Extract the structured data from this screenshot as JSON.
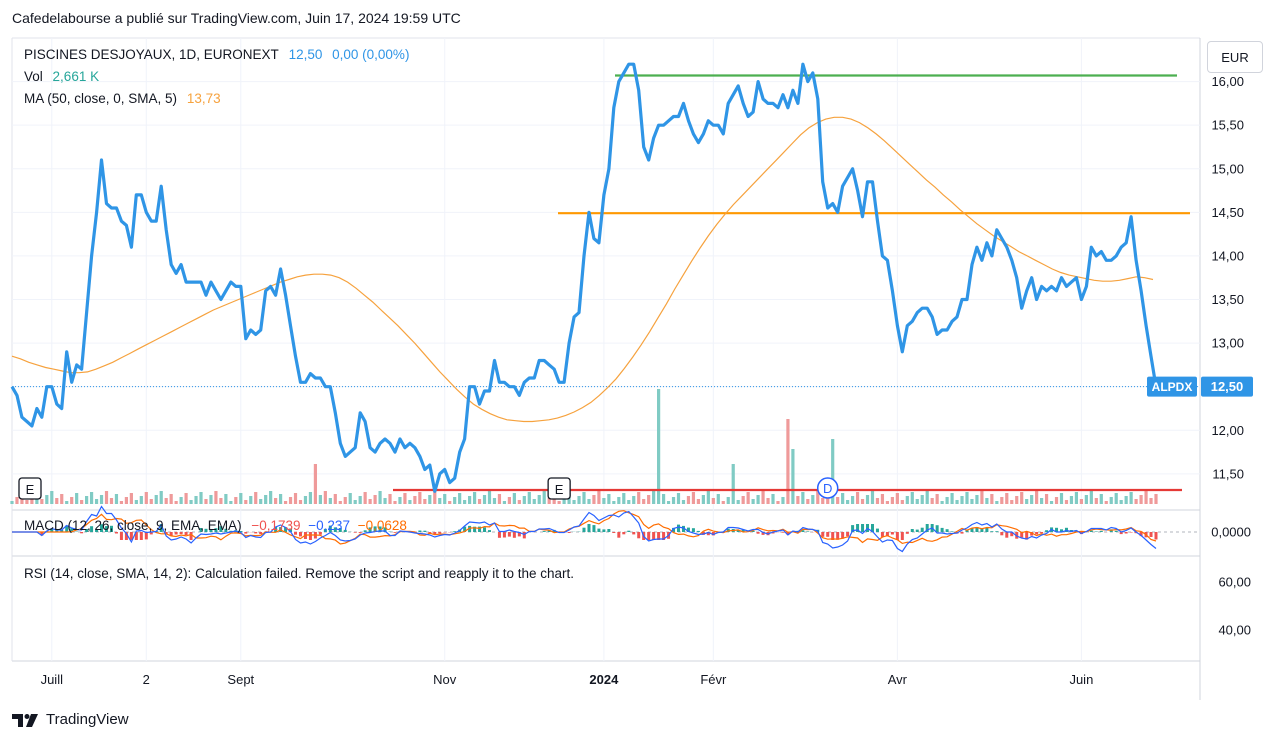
{
  "header": {
    "publisher": "Cafedelabourse a publié sur TradingView.com, Juin 17, 2024 19:59 UTC"
  },
  "legend": {
    "symbol": "PISCINES DESJOYAUX, 1D, EURONEXT",
    "last": "12,50",
    "change": "0,00 (0,00%)",
    "vol_label": "Vol",
    "vol_value": "2,661 K",
    "ma_label": "MA (50, close, 0, SMA, 5)",
    "ma_value": "13,73",
    "macd_label": "MACD (12, 26, close, 9, EMA, EMA)",
    "macd_hist": "−0,1739",
    "macd_macd": "−0,237",
    "macd_signal": "−0,0628",
    "rsi_text": "RSI (14, close, SMA, 14, 2): Calculation failed. Remove the script and reapply it to the chart."
  },
  "currency": "EUR",
  "price_tag": {
    "symbol": "ALPDX",
    "value": "12,50"
  },
  "brand": "TradingView",
  "colors": {
    "price": "#2f95e6",
    "ma": "#f6a23e",
    "green_line": "#4caf50",
    "orange_line": "#ff9800",
    "red_line": "#e53935",
    "macd": "#2962ff",
    "signal": "#ff6d00",
    "vol_up": "#80cbc4",
    "vol_down": "#ef9a9a"
  },
  "markers": [
    {
      "label": "E",
      "date_index": 0
    },
    {
      "label": "E",
      "date_index": 110
    },
    {
      "label": "D",
      "date_index": 164
    }
  ],
  "chart_data": {
    "type": "line",
    "title": "PISCINES DESJOYAUX, 1D, EURONEXT",
    "ylim": [
      11.2,
      16.5
    ],
    "y_ticks": [
      "16,00",
      "15,50",
      "15,00",
      "14,50",
      "14,00",
      "13,50",
      "13,00",
      "12,50",
      "12,00",
      "11,50"
    ],
    "x_ticks": [
      {
        "label": "Juill",
        "idx": 8
      },
      {
        "label": "2",
        "idx": 27
      },
      {
        "label": "Sept",
        "idx": 46
      },
      {
        "label": "Nov",
        "idx": 87
      },
      {
        "label": "2024",
        "idx": 119
      },
      {
        "label": "Févr",
        "idx": 141
      },
      {
        "label": "Avr",
        "idx": 178
      },
      {
        "label": "Juin",
        "idx": 215
      }
    ],
    "series": [
      {
        "name": "PISCINES DESJOYAUX",
        "values": [
          12.5,
          12.4,
          12.15,
          12.1,
          12.05,
          12.25,
          12.15,
          12.5,
          12.5,
          12.3,
          12.25,
          12.9,
          12.55,
          12.75,
          12.7,
          13.35,
          14.0,
          14.5,
          15.1,
          14.6,
          14.55,
          14.55,
          14.4,
          14.35,
          14.1,
          14.7,
          14.7,
          14.5,
          14.4,
          14.4,
          14.8,
          14.3,
          13.9,
          13.8,
          13.9,
          13.7,
          13.7,
          13.7,
          13.7,
          13.55,
          13.7,
          13.6,
          13.5,
          13.6,
          13.7,
          13.65,
          13.65,
          13.05,
          13.15,
          13.1,
          13.15,
          13.6,
          13.65,
          13.55,
          13.85,
          13.55,
          13.2,
          12.85,
          12.55,
          12.55,
          12.65,
          12.6,
          12.6,
          12.5,
          12.5,
          12.2,
          11.85,
          11.7,
          11.75,
          11.8,
          12.2,
          12.1,
          11.8,
          11.75,
          11.85,
          11.9,
          11.85,
          11.75,
          11.9,
          11.8,
          11.85,
          11.8,
          11.7,
          11.55,
          11.6,
          11.3,
          11.5,
          11.55,
          11.4,
          11.45,
          11.75,
          11.9,
          12.5,
          12.5,
          12.3,
          12.45,
          12.45,
          12.8,
          12.55,
          12.55,
          12.5,
          12.5,
          12.4,
          12.55,
          12.6,
          12.6,
          12.8,
          12.8,
          12.75,
          12.7,
          12.55,
          12.55,
          13.0,
          13.3,
          13.35,
          14.0,
          14.5,
          14.2,
          14.15,
          14.7,
          15.0,
          15.7,
          16.0,
          16.1,
          16.2,
          16.2,
          15.9,
          15.25,
          15.1,
          15.35,
          15.5,
          15.5,
          15.55,
          15.6,
          15.6,
          15.75,
          15.55,
          15.4,
          15.3,
          15.4,
          15.55,
          15.5,
          15.5,
          15.4,
          15.75,
          15.85,
          15.95,
          15.75,
          15.6,
          15.65,
          16.0,
          15.8,
          15.75,
          15.75,
          15.7,
          15.85,
          15.7,
          15.9,
          15.75,
          16.2,
          16.0,
          16.1,
          15.8,
          14.85,
          14.55,
          14.6,
          14.5,
          14.8,
          14.9,
          15.0,
          14.75,
          14.45,
          14.85,
          14.85,
          14.4,
          14.0,
          13.95,
          13.6,
          13.2,
          12.9,
          13.2,
          13.25,
          13.35,
          13.4,
          13.4,
          13.3,
          13.1,
          13.15,
          13.15,
          13.25,
          13.3,
          13.5,
          13.5,
          13.9,
          14.1,
          13.95,
          14.15,
          14.0,
          14.3,
          14.2,
          14.1,
          13.95,
          13.75,
          13.4,
          13.6,
          13.75,
          13.5,
          13.65,
          13.6,
          13.65,
          13.6,
          13.75,
          13.65,
          13.7,
          13.75,
          13.5,
          13.65,
          14.1,
          14.0,
          14.05,
          13.95,
          13.95,
          14.0,
          14.1,
          14.15,
          14.45,
          13.95,
          13.6,
          13.2,
          12.85,
          12.5
        ]
      },
      {
        "name": "MA (50, close, 0, SMA, 5)",
        "values": [
          12.85,
          12.82,
          12.78,
          12.75,
          12.72,
          12.7,
          12.68,
          12.66,
          12.66,
          12.67,
          12.7,
          12.74,
          12.78,
          12.83,
          12.88,
          12.93,
          12.98,
          13.03,
          13.08,
          13.13,
          13.18,
          13.23,
          13.28,
          13.33,
          13.38,
          13.42,
          13.46,
          13.5,
          13.54,
          13.58,
          13.62,
          13.66,
          13.7,
          13.73,
          13.76,
          13.78,
          13.79,
          13.79,
          13.78,
          13.75,
          13.7,
          13.63,
          13.55,
          13.47,
          13.38,
          13.29,
          13.2,
          13.1,
          13.0,
          12.89,
          12.78,
          12.67,
          12.57,
          12.47,
          12.38,
          12.3,
          12.24,
          12.19,
          12.15,
          12.12,
          12.11,
          12.1,
          12.1,
          12.11,
          12.12,
          12.14,
          12.17,
          12.21,
          12.26,
          12.32,
          12.4,
          12.49,
          12.59,
          12.71,
          12.84,
          12.98,
          13.13,
          13.29,
          13.45,
          13.62,
          13.78,
          13.94,
          14.09,
          14.23,
          14.36,
          14.48,
          14.59,
          14.69,
          14.79,
          14.89,
          14.99,
          15.09,
          15.19,
          15.29,
          15.39,
          15.47,
          15.53,
          15.57,
          15.59,
          15.59,
          15.57,
          15.53,
          15.47,
          15.4,
          15.32,
          15.23,
          15.14,
          15.05,
          14.96,
          14.87,
          14.79,
          14.7,
          14.62,
          14.53,
          14.45,
          14.37,
          14.3,
          14.23,
          14.17,
          14.11,
          14.05,
          14.0,
          13.95,
          13.9,
          13.85,
          13.81,
          13.78,
          13.76,
          13.74,
          13.72,
          13.71,
          13.71,
          13.72,
          13.74,
          13.76,
          13.75,
          13.73
        ]
      }
    ]
  }
}
